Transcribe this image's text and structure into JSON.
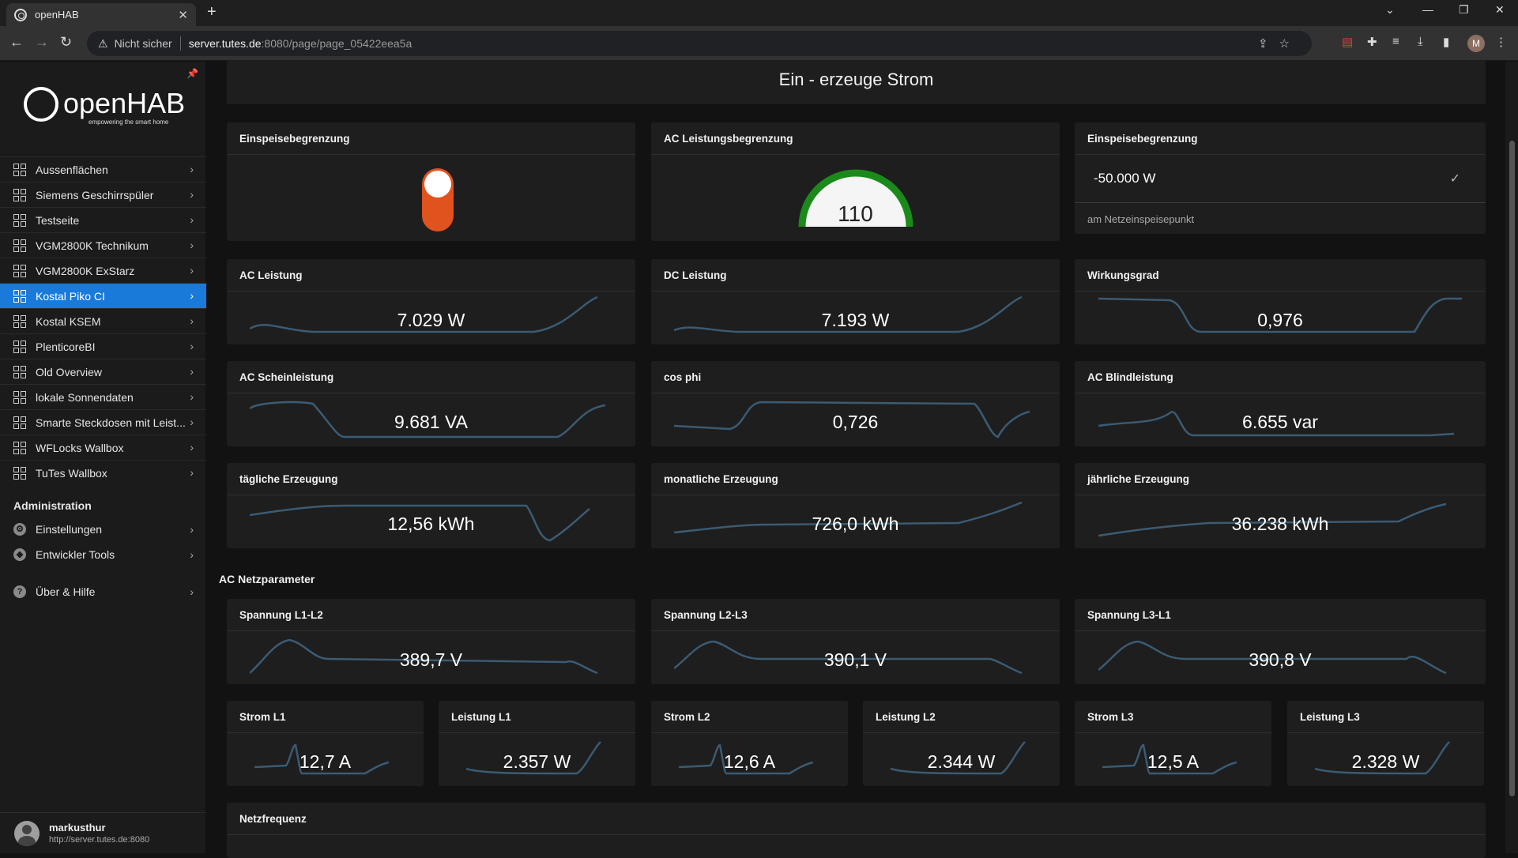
{
  "browser": {
    "tab_title": "openHAB",
    "security_label": "Nicht sicher",
    "url_host": "server.tutes.de",
    "url_path": ":8080/page/page_05422eea5a",
    "profile_initial": "M"
  },
  "sidebar": {
    "logo_text": "openHAB",
    "logo_tagline": "empowering the smart home",
    "items": [
      {
        "label": "Aussenflächen"
      },
      {
        "label": "Siemens Geschirrspüler"
      },
      {
        "label": "Testseite"
      },
      {
        "label": "VGM2800K Technikum"
      },
      {
        "label": "VGM2800K ExStarz"
      },
      {
        "label": "Kostal Piko CI"
      },
      {
        "label": "Kostal KSEM"
      },
      {
        "label": "PlenticoreBI"
      },
      {
        "label": "Old Overview"
      },
      {
        "label": "lokale Sonnendaten"
      },
      {
        "label": "Smarte Steckdosen mit Leist..."
      },
      {
        "label": "WFLocks Wallbox"
      },
      {
        "label": "TuTes Wallbox"
      }
    ],
    "active_index": 5,
    "admin_heading": "Administration",
    "admin_items": [
      {
        "label": "Einstellungen",
        "icon": "gear-icon"
      },
      {
        "label": "Entwickler Tools",
        "icon": "shield-icon"
      }
    ],
    "help_label": "Über & Hilfe",
    "user": {
      "name": "markusthur",
      "url": "http://server.tutes.de:8080"
    }
  },
  "page": {
    "title": "Ein - erzeuge Strom",
    "row1": {
      "toggle_card": {
        "title": "Einspeisebegrenzung",
        "state": "on"
      },
      "gauge_card": {
        "title": "AC Leistungsbegrenzung",
        "value": "110",
        "level": 1.0
      },
      "input_card": {
        "title": "Einspeisebegrenzung",
        "value": "-50.000 W",
        "hint": "am Netzeinspeisepunkt"
      }
    },
    "cards": [
      {
        "title": "AC Leistung",
        "value": "7.029 W"
      },
      {
        "title": "DC Leistung",
        "value": "7.193 W"
      },
      {
        "title": "Wirkungsgrad",
        "value": "0,976"
      },
      {
        "title": "AC Scheinleistung",
        "value": "9.681 VA"
      },
      {
        "title": "cos phi",
        "value": "0,726"
      },
      {
        "title": "AC Blindleistung",
        "value": "6.655 var"
      },
      {
        "title": "tägliche Erzeugung",
        "value": "12,56 kWh"
      },
      {
        "title": "monatliche Erzeugung",
        "value": "726,0 kWh"
      },
      {
        "title": "jährliche Erzeugung",
        "value": "36.238 kWh"
      }
    ],
    "section_label": "AC Netzparameter",
    "voltage_cards": [
      {
        "title": "Spannung L1-L2",
        "value": "389,7 V"
      },
      {
        "title": "Spannung L2-L3",
        "value": "390,1 V"
      },
      {
        "title": "Spannung L3-L1",
        "value": "390,8 V"
      }
    ],
    "small_cards": [
      {
        "title": "Strom L1",
        "value": "12,7 A"
      },
      {
        "title": "Leistung L1",
        "value": "2.357 W"
      },
      {
        "title": "Strom L2",
        "value": "12,6 A"
      },
      {
        "title": "Leistung L2",
        "value": "2.344 W"
      },
      {
        "title": "Strom L3",
        "value": "12,5 A"
      },
      {
        "title": "Leistung L3",
        "value": "2.328 W"
      }
    ],
    "freq_card": {
      "title": "Netzfrequenz"
    }
  },
  "colors": {
    "accent": "#1a7ad9",
    "toggle": "#e0531f",
    "gauge": "#1b8a1b",
    "spark": "#3b5b73"
  }
}
